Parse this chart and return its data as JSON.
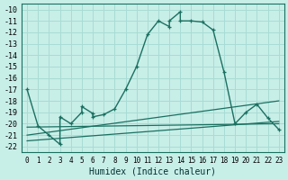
{
  "xlabel": "Humidex (Indice chaleur)",
  "background_color": "#c8eee8",
  "grid_color": "#a8dcd4",
  "line_color": "#1a7060",
  "xlim": [
    -0.5,
    23.5
  ],
  "ylim": [
    -22.5,
    -9.5
  ],
  "yticks": [
    -22,
    -21,
    -20,
    -19,
    -18,
    -17,
    -16,
    -15,
    -14,
    -13,
    -12,
    -11,
    -10
  ],
  "xticks": [
    0,
    1,
    2,
    3,
    4,
    5,
    6,
    7,
    8,
    9,
    10,
    11,
    12,
    13,
    14,
    15,
    16,
    17,
    18,
    19,
    20,
    21,
    22,
    23
  ],
  "line1": [
    [
      0,
      -17.0
    ],
    [
      1,
      -20.2
    ],
    [
      2,
      -21.0
    ],
    [
      3,
      -21.8
    ],
    [
      3,
      -19.4
    ],
    [
      4,
      -20.0
    ],
    [
      5,
      -19.0
    ],
    [
      5,
      -18.5
    ],
    [
      6,
      -19.1
    ],
    [
      6,
      -19.4
    ],
    [
      7,
      -19.2
    ],
    [
      8,
      -18.7
    ],
    [
      9,
      -17.0
    ],
    [
      10,
      -15.0
    ],
    [
      11,
      -12.2
    ],
    [
      12,
      -11.0
    ],
    [
      13,
      -11.5
    ],
    [
      13,
      -11.0
    ],
    [
      14,
      -10.2
    ],
    [
      14,
      -11.0
    ],
    [
      15,
      -11.0
    ],
    [
      16,
      -11.1
    ],
    [
      17,
      -11.8
    ],
    [
      18,
      -15.5
    ],
    [
      19,
      -20.0
    ],
    [
      20,
      -19.0
    ],
    [
      21,
      -18.3
    ],
    [
      22,
      -19.5
    ],
    [
      23,
      -20.5
    ]
  ],
  "line2_x": [
    0,
    23
  ],
  "line2_y": [
    -20.3,
    -20.0
  ],
  "line3_x": [
    0,
    23
  ],
  "line3_y": [
    -21.0,
    -18.0
  ],
  "line4_x": [
    0,
    23
  ],
  "line4_y": [
    -21.5,
    -19.8
  ]
}
